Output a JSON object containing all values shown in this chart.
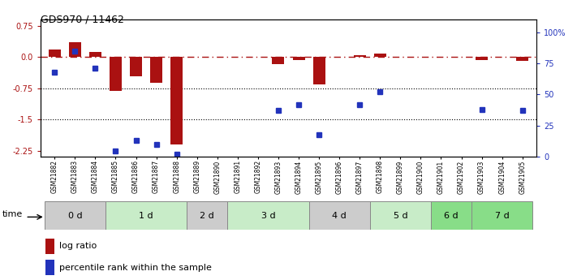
{
  "title": "GDS970 / 11462",
  "samples": [
    "GSM21882",
    "GSM21883",
    "GSM21884",
    "GSM21885",
    "GSM21886",
    "GSM21887",
    "GSM21888",
    "GSM21889",
    "GSM21890",
    "GSM21891",
    "GSM21892",
    "GSM21893",
    "GSM21894",
    "GSM21895",
    "GSM21896",
    "GSM21897",
    "GSM21898",
    "GSM21899",
    "GSM21900",
    "GSM21901",
    "GSM21902",
    "GSM21903",
    "GSM21904",
    "GSM21905"
  ],
  "log_ratio": [
    0.18,
    0.35,
    0.12,
    -0.82,
    -0.47,
    -0.62,
    -2.1,
    0.0,
    0.0,
    0.0,
    0.0,
    -0.18,
    -0.08,
    -0.65,
    0.0,
    0.05,
    0.08,
    0.0,
    0.0,
    0.0,
    0.0,
    -0.07,
    0.0,
    -0.1
  ],
  "percentile_rank": [
    68,
    85,
    71,
    5,
    13,
    10,
    2,
    null,
    null,
    null,
    null,
    37,
    42,
    18,
    null,
    42,
    52,
    null,
    null,
    null,
    null,
    38,
    null,
    37
  ],
  "groups": [
    {
      "label": "0 d",
      "start": 0,
      "end": 3,
      "color": "#cccccc"
    },
    {
      "label": "1 d",
      "start": 3,
      "end": 7,
      "color": "#c8ecc8"
    },
    {
      "label": "2 d",
      "start": 7,
      "end": 9,
      "color": "#cccccc"
    },
    {
      "label": "3 d",
      "start": 9,
      "end": 13,
      "color": "#c8ecc8"
    },
    {
      "label": "4 d",
      "start": 13,
      "end": 16,
      "color": "#cccccc"
    },
    {
      "label": "5 d",
      "start": 16,
      "end": 19,
      "color": "#c8ecc8"
    },
    {
      "label": "6 d",
      "start": 19,
      "end": 21,
      "color": "#88dd88"
    },
    {
      "label": "7 d",
      "start": 21,
      "end": 24,
      "color": "#88dd88"
    }
  ],
  "ylim_left": [
    -2.4,
    0.9
  ],
  "ylim_right": [
    0,
    110
  ],
  "left_yticks": [
    0.75,
    0.0,
    -0.75,
    -1.5,
    -2.25
  ],
  "right_yticks": [
    0,
    25,
    50,
    75,
    100
  ],
  "right_yticklabels": [
    "0",
    "25",
    "50",
    "75",
    "100%"
  ],
  "bar_color": "#aa1111",
  "dot_color": "#2233bb",
  "refline_y": 0.0,
  "hline_y": [
    -0.75,
    -1.5
  ],
  "legend_labels": [
    "log ratio",
    "percentile rank within the sample"
  ],
  "legend_colors": [
    "#aa1111",
    "#2233bb"
  ],
  "fig_width": 7.11,
  "fig_height": 3.45,
  "fig_dpi": 100
}
